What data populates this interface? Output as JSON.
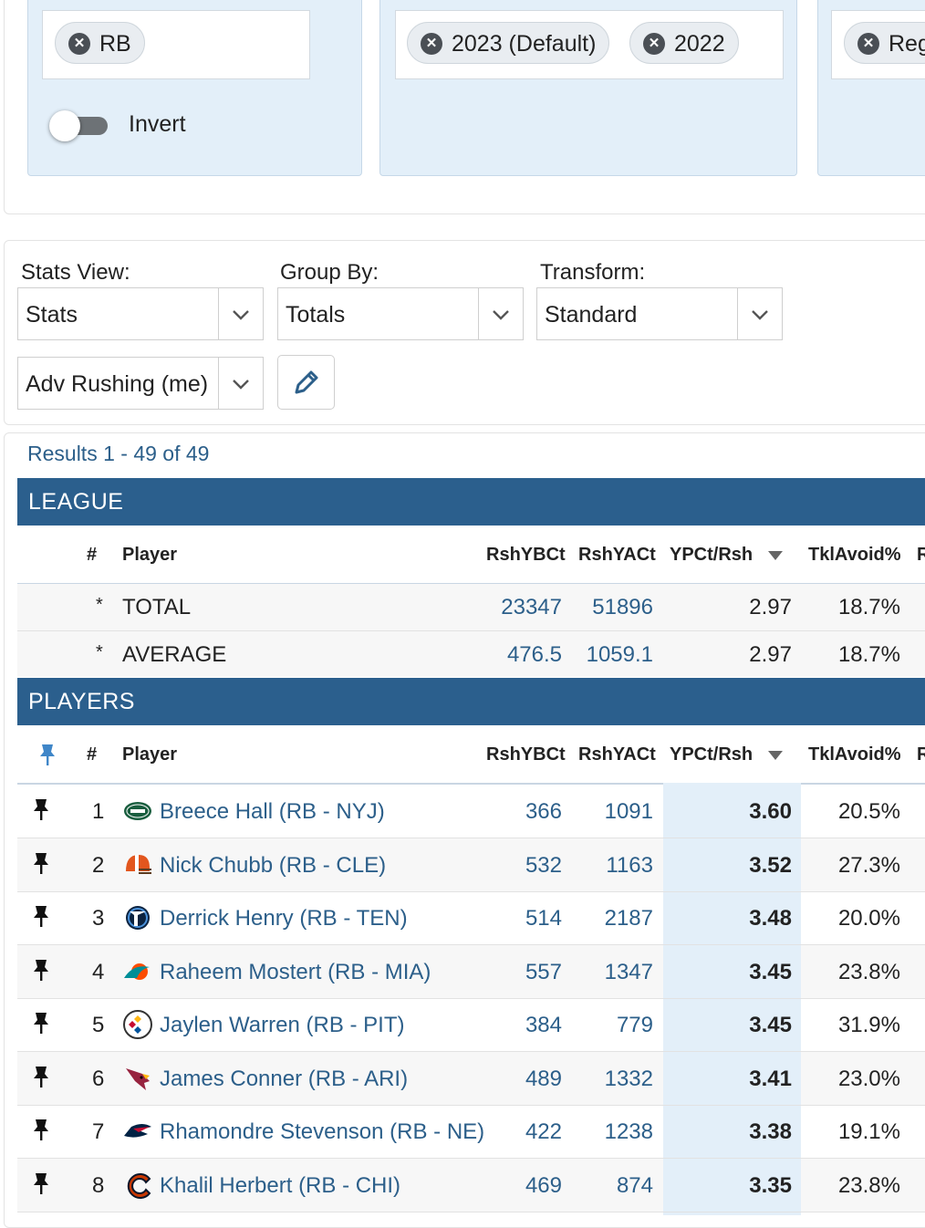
{
  "filters": {
    "position_chip": "RB",
    "invert_label": "Invert",
    "season_chips": [
      "2023 (Default)",
      "2022"
    ],
    "season_type_chip": "Reg"
  },
  "settings": {
    "stats_view_label": "Stats View:",
    "stats_view_value": "Stats",
    "group_by_label": "Group By:",
    "group_by_value": "Totals",
    "transform_label": "Transform:",
    "transform_value": "Standard",
    "stat_set_value": "Adv Rushing (me)"
  },
  "results_text": "Results 1 - 49 of 49",
  "league_section": "LEAGUE",
  "players_section": "PLAYERS",
  "columns": {
    "num": "#",
    "player": "Player",
    "c1": "RshYBCt",
    "c2": "RshYACt",
    "c3": "YPCt/Rsh",
    "c4": "TklAvoid%",
    "c5": "R"
  },
  "league_rows": [
    {
      "mark": "*",
      "name": "TOTAL",
      "c1": "23347",
      "c2": "51896",
      "c3": "2.97",
      "c4": "18.7%"
    },
    {
      "mark": "*",
      "name": "AVERAGE",
      "c1": "476.5",
      "c2": "1059.1",
      "c3": "2.97",
      "c4": "18.7%"
    }
  ],
  "players": [
    {
      "rank": "1",
      "name": "Breece Hall (RB - NYJ)",
      "logo": "jets-logo",
      "c1": "366",
      "c2": "1091",
      "c3": "3.60",
      "c4": "20.5%"
    },
    {
      "rank": "2",
      "name": "Nick Chubb (RB - CLE)",
      "logo": "browns-logo",
      "c1": "532",
      "c2": "1163",
      "c3": "3.52",
      "c4": "27.3%"
    },
    {
      "rank": "3",
      "name": "Derrick Henry (RB - TEN)",
      "logo": "titans-logo",
      "c1": "514",
      "c2": "2187",
      "c3": "3.48",
      "c4": "20.0%"
    },
    {
      "rank": "4",
      "name": "Raheem Mostert (RB - MIA)",
      "logo": "dolphins-logo",
      "c1": "557",
      "c2": "1347",
      "c3": "3.45",
      "c4": "23.8%"
    },
    {
      "rank": "5",
      "name": "Jaylen Warren (RB - PIT)",
      "logo": "steelers-logo",
      "c1": "384",
      "c2": "779",
      "c3": "3.45",
      "c4": "31.9%"
    },
    {
      "rank": "6",
      "name": "James Conner (RB - ARI)",
      "logo": "cardinals-logo",
      "c1": "489",
      "c2": "1332",
      "c3": "3.41",
      "c4": "23.0%"
    },
    {
      "rank": "7",
      "name": "Rhamondre Stevenson (RB - NE)",
      "logo": "patriots-logo",
      "c1": "422",
      "c2": "1238",
      "c3": "3.38",
      "c4": "19.1%"
    },
    {
      "rank": "8",
      "name": "Khalil Herbert (RB - CHI)",
      "logo": "bears-logo",
      "c1": "469",
      "c2": "874",
      "c3": "3.35",
      "c4": "23.8%"
    }
  ]
}
